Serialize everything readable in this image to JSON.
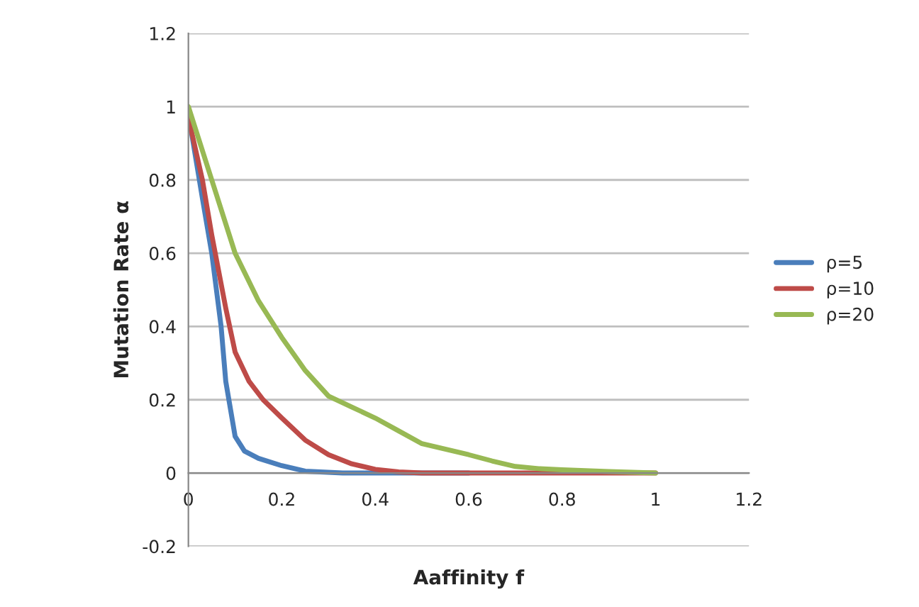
{
  "chart_data": {
    "type": "line",
    "xlabel": "Aaffinity f",
    "ylabel": "Mutation Rate α",
    "xlim": [
      0,
      1.2
    ],
    "xticks": [
      0,
      0.2,
      0.4,
      0.6,
      0.8,
      1,
      1.2
    ],
    "ylim": [
      -0.2,
      1.2
    ],
    "yticks": [
      -0.2,
      0,
      0.2,
      0.4,
      0.6,
      0.8,
      1,
      1.2
    ],
    "grid": "y",
    "legend": "right",
    "marker": "none",
    "line_style": "solid",
    "series": [
      {
        "name": "ρ=5",
        "color": "#4a7ebb",
        "x": [
          0,
          0.03,
          0.05,
          0.07,
          0.08,
          0.1,
          0.12,
          0.15,
          0.2,
          0.25,
          0.33,
          0.4,
          0.5,
          0.6
        ],
        "values": [
          0.98,
          0.75,
          0.6,
          0.4,
          0.25,
          0.1,
          0.06,
          0.04,
          0.02,
          0.005,
          0,
          0,
          0,
          0
        ]
      },
      {
        "name": "ρ=10",
        "color": "#be4b48",
        "x": [
          0,
          0.03,
          0.05,
          0.08,
          0.1,
          0.13,
          0.16,
          0.2,
          0.25,
          0.3,
          0.35,
          0.4,
          0.45,
          0.5,
          0.6,
          0.8,
          1
        ],
        "values": [
          0.97,
          0.8,
          0.65,
          0.45,
          0.33,
          0.25,
          0.2,
          0.15,
          0.09,
          0.05,
          0.025,
          0.01,
          0.003,
          0,
          0,
          0,
          0
        ]
      },
      {
        "name": "ρ=20",
        "color": "#98b954",
        "x": [
          0,
          0.05,
          0.1,
          0.15,
          0.2,
          0.25,
          0.3,
          0.35,
          0.4,
          0.45,
          0.5,
          0.55,
          0.6,
          0.65,
          0.7,
          0.75,
          0.8,
          0.9,
          1
        ],
        "values": [
          1,
          0.8,
          0.6,
          0.47,
          0.37,
          0.28,
          0.21,
          0.18,
          0.15,
          0.115,
          0.08,
          0.065,
          0.05,
          0.033,
          0.018,
          0.012,
          0.009,
          0.004,
          0
        ]
      }
    ]
  }
}
